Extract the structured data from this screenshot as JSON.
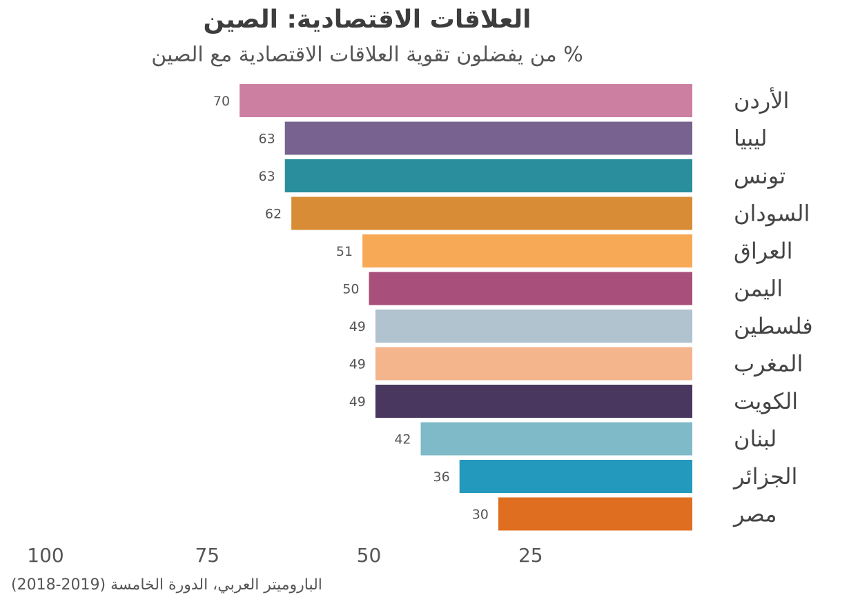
{
  "chart_data": {
    "type": "bar",
    "orientation": "horizontal",
    "direction": "right-to-left",
    "title": "العلاقات الاقتصادية: الصين",
    "subtitle": "% من يفضلون تقوية العلاقات الاقتصادية مع الصين",
    "source": "الباروميتر العربي، الدورة الخامسة (2019-2018)",
    "xlim": [
      0,
      100
    ],
    "ticks": [
      {
        "value": 100,
        "label": "100"
      },
      {
        "value": 75,
        "label": "75"
      },
      {
        "value": 50,
        "label": "50"
      },
      {
        "value": 25,
        "label": "25"
      }
    ],
    "bars": [
      {
        "category": "الأردن",
        "value": 70,
        "label": "70",
        "color": "#cc7fa1"
      },
      {
        "category": "ليبيا",
        "value": 63,
        "label": "63",
        "color": "#78628f"
      },
      {
        "category": "تونس",
        "value": 63,
        "label": "63",
        "color": "#2a8e9c"
      },
      {
        "category": "السودان",
        "value": 62,
        "label": "62",
        "color": "#d98c36"
      },
      {
        "category": "العراق",
        "value": 51,
        "label": "51",
        "color": "#f8a955"
      },
      {
        "category": "اليمن",
        "value": 50,
        "label": "50",
        "color": "#a84f7b"
      },
      {
        "category": "فلسطين",
        "value": 49,
        "label": "49",
        "color": "#b0c3cf"
      },
      {
        "category": "المغرب",
        "value": 49,
        "label": "49",
        "color": "#f4b48c"
      },
      {
        "category": "الكويت",
        "value": 49,
        "label": "49",
        "color": "#4a3760"
      },
      {
        "category": "لبنان",
        "value": 42,
        "label": "42",
        "color": "#7fbac8"
      },
      {
        "category": "الجزائر",
        "value": 36,
        "label": "36",
        "color": "#2399bd"
      },
      {
        "category": "مصر",
        "value": 30,
        "label": "30",
        "color": "#df6e21"
      }
    ]
  }
}
